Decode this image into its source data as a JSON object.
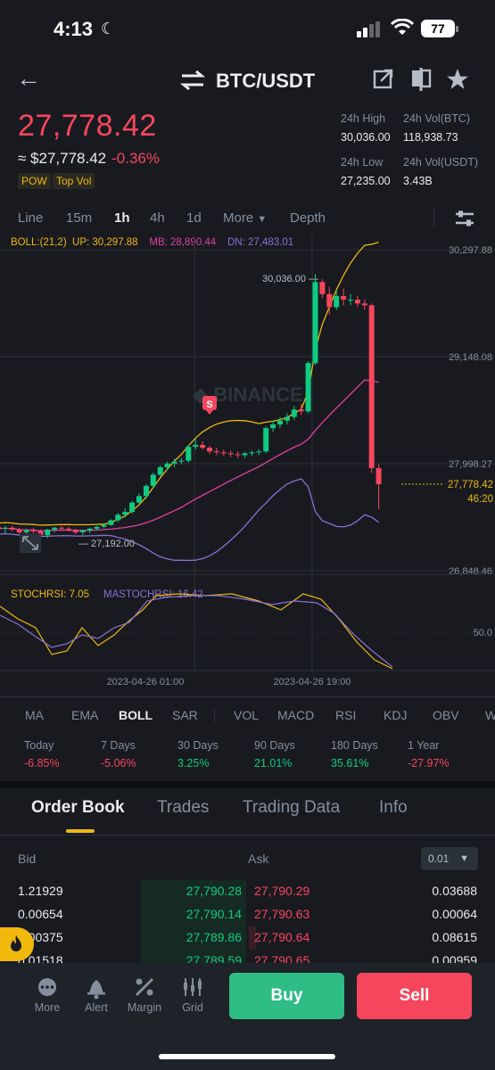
{
  "status": {
    "time": "4:13",
    "battery": "77"
  },
  "header": {
    "pair": "BTC/USDT"
  },
  "price": {
    "last": "27,778.42",
    "usd": "≈ $27,778.42",
    "change": "-0.36%",
    "tags": [
      "POW",
      "Top Vol"
    ]
  },
  "stats": [
    {
      "label": "24h High",
      "value": "30,036.00"
    },
    {
      "label": "24h Vol(BTC)",
      "value": "118,938.73"
    },
    {
      "label": "24h Low",
      "value": "27,235.00"
    },
    {
      "label": "24h Vol(USDT)",
      "value": "3.43B"
    }
  ],
  "timeframes": [
    "Line",
    "15m",
    "1h",
    "4h",
    "1d",
    "More",
    "Depth"
  ],
  "active_timeframe": "1h",
  "boll": {
    "name": "BOLL:(21,2)",
    "up": "UP: 30,297.88",
    "mb": "MB: 28,890.44",
    "dn": "DN: 27,483.01"
  },
  "stochrsi": {
    "k": "STOCHRSI: 7.05",
    "d": "MASTOCHRSI: 16.42",
    "level": "50.0"
  },
  "chart_data": {
    "type": "candlestick",
    "y_axis_labels": [
      "30,297.88",
      "29,148.08",
      "27,998.27",
      "26,848.46"
    ],
    "ylim": [
      26848.46,
      30297.88
    ],
    "current_price_label": "27,778.42",
    "countdown": "46:20",
    "high_annotation": "30,036.00",
    "low_annotation": "27,192.00",
    "signal_marker": "S",
    "x_labels": [
      "2023-04-26 01:00",
      "2023-04-26 19:00"
    ],
    "colors": {
      "up": "#0ecb81",
      "down": "#f6465d",
      "boll_up": "#f0b90b",
      "boll_mb": "#e040a0",
      "boll_dn": "#8b6fd6"
    },
    "candles": [
      [
        27320,
        27340,
        27260,
        27300
      ],
      [
        27300,
        27330,
        27250,
        27310
      ],
      [
        27310,
        27330,
        27270,
        27290
      ],
      [
        27290,
        27310,
        27240,
        27260
      ],
      [
        27260,
        27300,
        27200,
        27280
      ],
      [
        27280,
        27310,
        27250,
        27270
      ],
      [
        27270,
        27290,
        27210,
        27230
      ],
      [
        27230,
        27300,
        27200,
        27290
      ],
      [
        27290,
        27320,
        27260,
        27310
      ],
      [
        27310,
        27330,
        27280,
        27300
      ],
      [
        27300,
        27320,
        27270,
        27280
      ],
      [
        27280,
        27300,
        27240,
        27260
      ],
      [
        27260,
        27290,
        27230,
        27280
      ],
      [
        27280,
        27310,
        27250,
        27300
      ],
      [
        27300,
        27330,
        27280,
        27320
      ],
      [
        27320,
        27350,
        27300,
        27340
      ],
      [
        27340,
        27400,
        27330,
        27390
      ],
      [
        27390,
        27470,
        27370,
        27450
      ],
      [
        27450,
        27520,
        27420,
        27480
      ],
      [
        27480,
        27600,
        27460,
        27580
      ],
      [
        27580,
        27680,
        27560,
        27650
      ],
      [
        27650,
        27780,
        27620,
        27760
      ],
      [
        27760,
        27900,
        27740,
        27880
      ],
      [
        27880,
        27980,
        27860,
        27960
      ],
      [
        27960,
        28020,
        27930,
        28000
      ],
      [
        28000,
        28050,
        27960,
        28020
      ],
      [
        28020,
        28060,
        27990,
        28030
      ],
      [
        28030,
        28200,
        28010,
        28180
      ],
      [
        28180,
        28280,
        28150,
        28200
      ],
      [
        28200,
        28240,
        28150,
        28170
      ],
      [
        28170,
        28190,
        28100,
        28130
      ],
      [
        28130,
        28170,
        28090,
        28120
      ],
      [
        28120,
        28150,
        28080,
        28110
      ],
      [
        28110,
        28140,
        28070,
        28100
      ],
      [
        28100,
        28130,
        28060,
        28090
      ],
      [
        28090,
        28120,
        28060,
        28110
      ],
      [
        28110,
        28140,
        28080,
        28120
      ],
      [
        28120,
        28150,
        28090,
        28130
      ],
      [
        28130,
        28400,
        28110,
        28380
      ],
      [
        28380,
        28460,
        28340,
        28420
      ],
      [
        28420,
        28500,
        28380,
        28460
      ],
      [
        28460,
        28540,
        28420,
        28500
      ],
      [
        28500,
        28620,
        28470,
        28580
      ],
      [
        28580,
        28640,
        28520,
        28560
      ],
      [
        28560,
        29100,
        28540,
        29080
      ],
      [
        29080,
        30036,
        29060,
        29950
      ],
      [
        29950,
        29980,
        29780,
        29820
      ],
      [
        29820,
        29900,
        29600,
        29680
      ],
      [
        29680,
        29860,
        29650,
        29800
      ],
      [
        29800,
        29880,
        29700,
        29760
      ],
      [
        29760,
        29820,
        29700,
        29760
      ],
      [
        29760,
        29800,
        29680,
        29720
      ],
      [
        29720,
        29760,
        29650,
        29700
      ],
      [
        29700,
        29720,
        27900,
        27950
      ],
      [
        27950,
        27990,
        27510,
        27778
      ]
    ]
  },
  "indicators": [
    "MA",
    "EMA",
    "BOLL",
    "SAR",
    "VOL",
    "MACD",
    "RSI",
    "KDJ",
    "OBV",
    "WR"
  ],
  "active_indicator": "BOLL",
  "performance": [
    {
      "label": "Today",
      "value": "-6.85%",
      "color": "#f6465d"
    },
    {
      "label": "7 Days",
      "value": "-5.06%",
      "color": "#f6465d"
    },
    {
      "label": "30 Days",
      "value": "3.25%",
      "color": "#0ecb81"
    },
    {
      "label": "90 Days",
      "value": "21.01%",
      "color": "#0ecb81"
    },
    {
      "label": "180 Days",
      "value": "35.61%",
      "color": "#0ecb81"
    },
    {
      "label": "1 Year",
      "value": "-27.97%",
      "color": "#f6465d"
    }
  ],
  "orderbook": {
    "tabs": [
      "Order Book",
      "Trades",
      "Trading Data",
      "Info"
    ],
    "bid_label": "Bid",
    "ask_label": "Ask",
    "precision": "0.01",
    "rows": [
      {
        "bid_qty": "1.21929",
        "bid_px": "27,790.28",
        "ask_px": "27,790.29",
        "ask_qty": "0.03688"
      },
      {
        "bid_qty": "0.00654",
        "bid_px": "27,790.14",
        "ask_px": "27,790.63",
        "ask_qty": "0.00064"
      },
      {
        "bid_qty": "0.00375",
        "bid_px": "27,789.86",
        "ask_px": "27,790.64",
        "ask_qty": "0.08615"
      },
      {
        "bid_qty": "0.01518",
        "bid_px": "27,789.59",
        "ask_px": "27,790.65",
        "ask_qty": "0.00959"
      }
    ]
  },
  "bottom_nav": {
    "items": [
      "More",
      "Alert",
      "Margin",
      "Grid"
    ],
    "buy": "Buy",
    "sell": "Sell"
  }
}
